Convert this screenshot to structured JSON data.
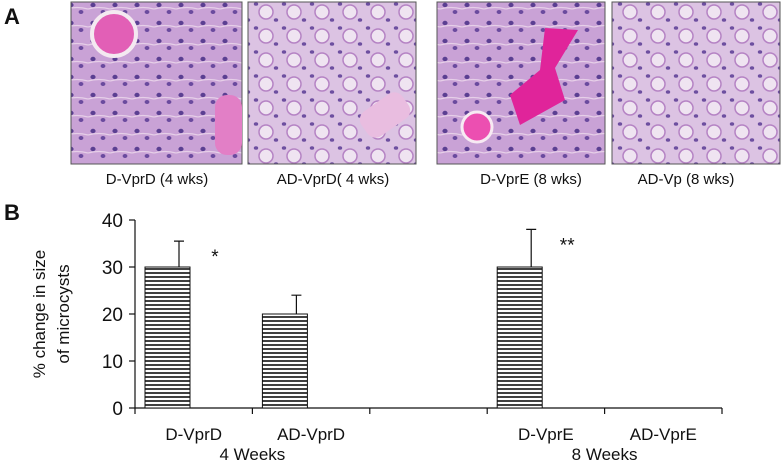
{
  "panel_a": {
    "label": "A",
    "captions": [
      "D-VprD (4 wks)",
      "AD-VprD( 4 wks)",
      "D-VprE (8 wks)",
      "AD-Vp (8 wks)"
    ]
  },
  "chart_data": {
    "type": "bar",
    "panel_label": "B",
    "ylabel_lines": [
      "% change in size",
      "of microcysts"
    ],
    "categories": [
      "D-VprD",
      "AD-VprD",
      null,
      "D-VprE",
      "AD-VprE"
    ],
    "values": [
      30,
      20,
      null,
      30,
      0
    ],
    "errors": [
      5.5,
      4,
      null,
      8,
      null
    ],
    "annotations": [
      "*",
      null,
      null,
      "**",
      null
    ],
    "groups": [
      {
        "label": "4 Weeks",
        "start": 0,
        "end": 1
      },
      {
        "label": "8 Weeks",
        "start": 3,
        "end": 4
      }
    ],
    "ylim": [
      0,
      40
    ],
    "yticks": [
      0,
      10,
      20,
      30,
      40
    ],
    "color": "#111111",
    "pattern": "horizontal-hatch"
  }
}
